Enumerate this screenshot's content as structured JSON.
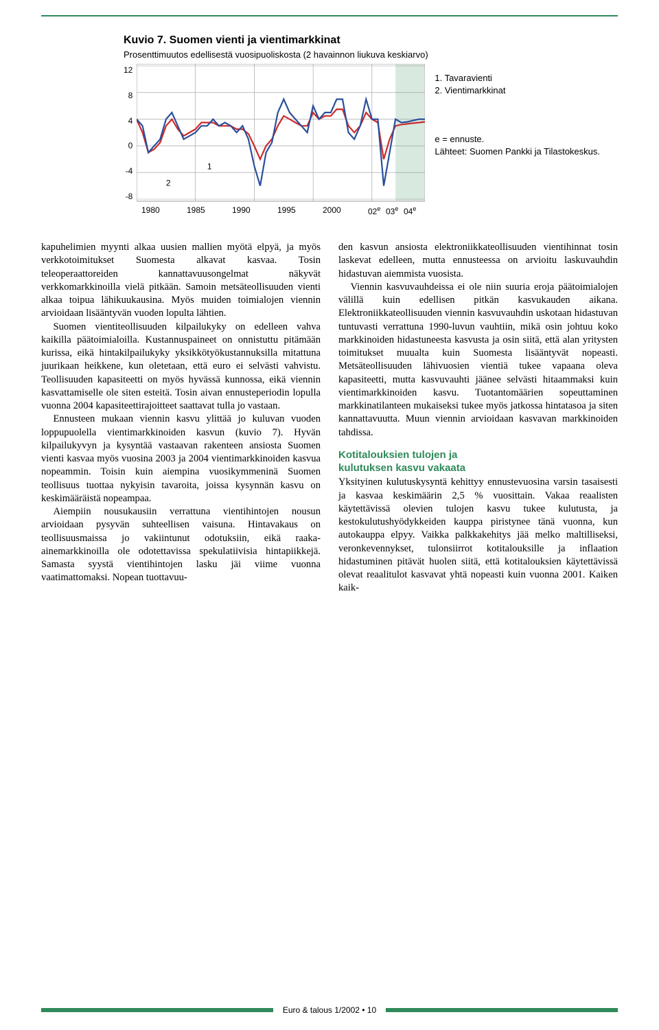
{
  "chart": {
    "heading": "Kuvio 7. Suomen vienti ja vientimarkkinat",
    "subtitle": "Prosenttimuutos edellisestä vuosipuoliskosta (2 havainnon liukuva keskiarvo)",
    "legend_1": "1. Tavaravienti",
    "legend_2": "2. Vientimarkkinat",
    "footnote_e": "e = ennuste.",
    "source": "Lähteet: Suomen Pankki ja Tilastokeskus.",
    "series_marker_1": "1",
    "series_marker_2": "2",
    "ylim": [
      -8,
      12
    ],
    "ytick_step": 4,
    "y_labels": [
      "12",
      "8",
      "4",
      "0",
      "-4",
      "-8"
    ],
    "x_labels": [
      "1980",
      "1985",
      "1990",
      "1995",
      "2000",
      "02",
      "03",
      "04"
    ],
    "x_super": [
      "",
      "",
      "",
      "",
      "",
      "e",
      "e",
      "e"
    ],
    "colors": {
      "series1": "#2a4f9c",
      "series2": "#cc2a2a",
      "grid": "#999999",
      "background": "#ffffff",
      "forecast_fill": "#d8e9df"
    },
    "line_width": 2.2,
    "series1_y": [
      4,
      3,
      -1,
      0,
      1,
      4,
      5,
      3,
      1,
      1.5,
      2,
      3,
      3,
      4,
      3,
      3.5,
      3,
      2,
      3,
      1,
      -3,
      -6,
      -1,
      0.5,
      5,
      7,
      5,
      4,
      3,
      2,
      6,
      4,
      5,
      5,
      7,
      7,
      2,
      1,
      3,
      7,
      4,
      4,
      -6,
      -1,
      4,
      3.5,
      3.6,
      3.8,
      4,
      4
    ],
    "series2_y": [
      4,
      2,
      -1,
      -0.5,
      0.5,
      3,
      4,
      2.5,
      1.5,
      2,
      2.5,
      3.5,
      3.5,
      3.5,
      3,
      3,
      3,
      2.5,
      2.5,
      1.8,
      0,
      -2,
      0,
      1,
      3,
      4.5,
      4,
      3.5,
      3,
      3,
      5,
      4,
      4.5,
      4.5,
      5.5,
      5.5,
      3,
      2,
      3,
      5,
      4,
      3.5,
      -2,
      1,
      3,
      3.2,
      3.3,
      3.4,
      3.5,
      3.6
    ],
    "x_count": 50,
    "forecast_start_index": 44
  },
  "body": {
    "p1": "kapuhelimien myynti alkaa uusien mallien myötä elpyä, ja myös verkkotoimitukset Suomesta alkavat kasvaa. Tosin teleoperaattoreiden kannattavuusongelmat näkyvät verkkomarkkinoilla vielä pitkään. Samoin metsäteollisuuden vienti alkaa toipua lähikuukausina. Myös muiden toimialojen viennin arvioidaan lisääntyvän vuoden lopulta lähtien.",
    "p2": "Suomen vientiteollisuuden kilpailukyky on edelleen vahva kaikilla päätoimialoilla. Kustannuspaineet on onnistuttu pitämään kurissa, eikä hintakilpailukyky yksikkötyökustannuksilla mitattuna juurikaan heikkene, kun oletetaan, että euro ei selvästi vahvistu. Teollisuuden kapasiteetti on myös hyvässä kunnossa, eikä viennin kasvattamiselle ole siten esteitä. Tosin aivan ennusteperiodin lopulla vuonna 2004 kapasiteettirajoitteet saattavat tulla jo vastaan.",
    "p3": "Ennusteen mukaan viennin kasvu ylittää jo kuluvan vuoden loppupuolella vientimarkkinoiden kasvun (kuvio 7). Hyvän kilpailukyvyn ja kysyntää vastaavan rakenteen ansiosta Suomen vienti kasvaa myös vuosina 2003 ja 2004 vientimarkkinoiden kasvua nopeammin. Toisin kuin aiempina vuosikymmeninä Suomen teollisuus tuottaa nykyisin tavaroita, joissa kysynnän kasvu on keskimääräistä nopeampaa.",
    "p4": "Aiempiin nousukausiin verrattuna vientihintojen nousun arvioidaan pysyvän suhteellisen vaisuna. Hintavakaus on teollisuusmaissa jo vakiintunut odotuksiin, eikä raaka-ainemarkkinoilla ole odotettavissa spekulatiivisia hintapiikkejä. Samasta syystä vientihintojen lasku jäi viime vuonna vaatimattomaksi. Nopean tuottavuu-",
    "p5": "den kasvun ansiosta elektroniikkateollisuuden vientihinnat tosin laskevat edelleen, mutta ennusteessa on arvioitu laskuvauhdin hidastuvan aiemmista vuosista.",
    "p6": "Viennin kasvuvauhdeissa ei ole niin suuria eroja päätoimialojen välillä kuin edellisen pitkän kasvukauden aikana. Elektroniikkateollisuuden viennin kasvuvauhdin uskotaan hidastuvan tuntuvasti verrattuna 1990-luvun vauhtiin, mikä osin johtuu koko markkinoiden hidastuneesta kasvusta ja osin siitä, että alan yritysten toimitukset muualta kuin Suomesta lisääntyvät nopeasti. Metsäteollisuuden lähivuosien vientiä tukee vapaana oleva kapasiteetti, mutta kasvuvauhti jäänee selvästi hitaammaksi kuin vientimarkkinoiden kasvu. Tuotantomäärien sopeuttaminen markkinatilanteen mukaiseksi tukee myös jatkossa hintatasoa ja siten kannattavuutta. Muun viennin arvioidaan kasvavan markkinoiden tahdissa.",
    "h3a": "Kotitalouksien tulojen ja",
    "h3b": "kulutuksen kasvu vakaata",
    "p7": "Yksityinen kulutuskysyntä kehittyy ennustevuosina varsin tasaisesti ja kasvaa keskimäärin 2,5 % vuosittain. Vakaa reaalisten käytettävissä olevien tulojen kasvu tukee kulutusta, ja kestokulutushyödykkeiden kauppa piristynee tänä vuonna, kun autokauppa elpyy. Vaikka palkkakehitys jää melko maltilliseksi, veronkevennykset, tulonsiirrot kotitalouksille ja inflaation hidastuminen pitävät huolen siitä, että kotitalouksien käytettävissä olevat reaalitulot kasvavat yhtä nopeasti kuin vuonna 2001. Kaiken kaik-"
  },
  "footer": {
    "text": "Euro & talous 1/2002 • 10"
  }
}
